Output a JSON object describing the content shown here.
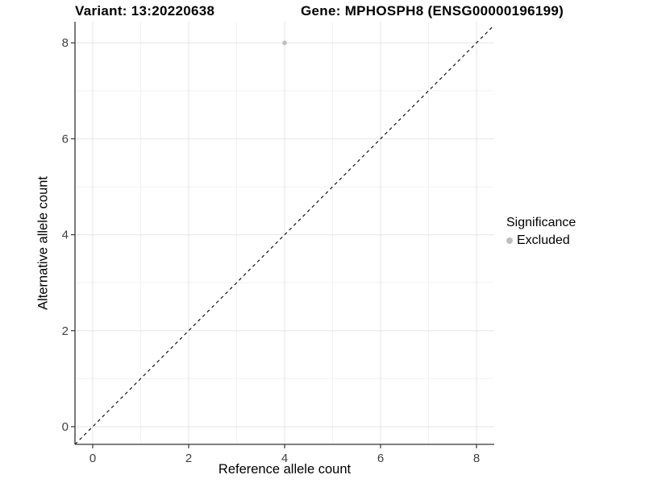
{
  "page": {
    "background": "#ffffff"
  },
  "header": {
    "variant_title": "Variant: 13:20220638",
    "gene_title": "Gene: MPHOSPH8 (ENSG00000196199)"
  },
  "legend": {
    "title": "Significance",
    "items": [
      {
        "label": "Excluded",
        "color": "#bebebe",
        "marker": "circle"
      }
    ]
  },
  "colors": {
    "background": "#ffffff",
    "grid_major": "#e6e6e6",
    "grid_minor": "#f2f2f2",
    "axis": "#333333",
    "tick_text": "#404040",
    "reference_line": "#000000",
    "point": "#bebebe"
  },
  "chart_data": {
    "type": "scatter",
    "title": "Variant: 13:20220638",
    "subtitle": "Gene: MPHOSPH8 (ENSG00000196199)",
    "xlabel": "Reference allele count",
    "ylabel": "Alternative allele count",
    "xlim": [
      -0.37,
      8.37
    ],
    "ylim": [
      -0.37,
      8.44
    ],
    "x_major_ticks": [
      0,
      2,
      4,
      6,
      8
    ],
    "y_major_ticks": [
      0,
      2,
      4,
      6,
      8
    ],
    "x_minor_ticks": [
      1,
      3,
      5,
      7
    ],
    "y_minor_ticks": [
      1,
      3,
      5,
      7
    ],
    "grid": true,
    "legend_position": "right",
    "series": [
      {
        "name": "Excluded",
        "color": "#bebebe",
        "points": [
          {
            "x": 4,
            "y": 8
          }
        ]
      }
    ],
    "reference_line": {
      "type": "identity",
      "slope": 1,
      "intercept": 0,
      "style": "dashed",
      "color": "#000000"
    }
  }
}
